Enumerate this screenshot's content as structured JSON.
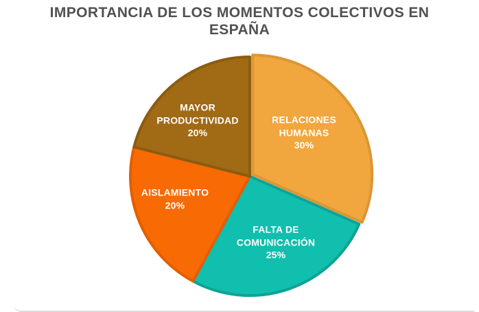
{
  "title": {
    "display": "IMPORTANCIA DE LOS MOMENTOS COLECTIVOS EN\nESPAÑA"
  },
  "chart_data": {
    "type": "pie",
    "title": "IMPORTANCIA DE LOS MOMENTOS COLECTIVOS EN ESPAÑA",
    "unit": "%",
    "start_angle_deg": 0,
    "direction": "clockwise",
    "values_sum_shown": 95,
    "legend": "none",
    "labels_inside": true,
    "title_color": "#515153",
    "background_color": "#ffffff",
    "slices": [
      {
        "label": "RELACIONES HUMANAS",
        "value": 30,
        "pct_label": "30%",
        "label_block": "RELACIONES\nHUMANAS\n30%",
        "color": "#F1A73E",
        "border_color": "#DC9634",
        "exploded": true
      },
      {
        "label": "FALTA DE COMUNICACIÓN",
        "value": 25,
        "pct_label": "25%",
        "label_block": "FALTA DE\nCOMUNICACIÓN\n25%",
        "color": "#10BFAE",
        "border_color": "#0DA396",
        "exploded": false
      },
      {
        "label": "AISLAMIENTO",
        "value": 20,
        "pct_label": "20%",
        "label_block": "AISLAMIENTO\n20%",
        "color": "#F86A04",
        "border_color": "#E25E06",
        "exploded": false
      },
      {
        "label": "MAYOR PRODUCTIVIDAD",
        "value": 20,
        "pct_label": "20%",
        "label_block": "MAYOR\nPRODUCTIVIDAD\n20%",
        "color": "#A16A15",
        "border_color": "#8B5C10",
        "exploded": false
      }
    ]
  }
}
